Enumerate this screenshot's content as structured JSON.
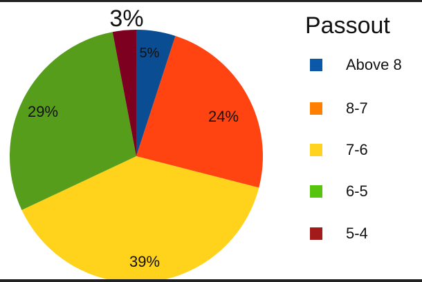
{
  "chart_data": {
    "type": "pie",
    "legend_title": "Passout",
    "legend_position": "right",
    "slices": [
      {
        "label": "Above 8",
        "value": 5,
        "display": "5%",
        "color": "#0B4D93"
      },
      {
        "label": "8-7",
        "value": 24,
        "display": "24%",
        "color": "#FF4412"
      },
      {
        "label": "7-6",
        "value": 39,
        "display": "39%",
        "color": "#FFD21C"
      },
      {
        "label": "6-5",
        "value": 29,
        "display": "29%",
        "color": "#579D1C"
      },
      {
        "label": "5-4",
        "value": 3,
        "display": "3%",
        "color": "#7E0021"
      }
    ],
    "legend_colors": [
      "#0B57A8",
      "#FF8000",
      "#FFD320",
      "#57C40F",
      "#A31A1A"
    ]
  }
}
